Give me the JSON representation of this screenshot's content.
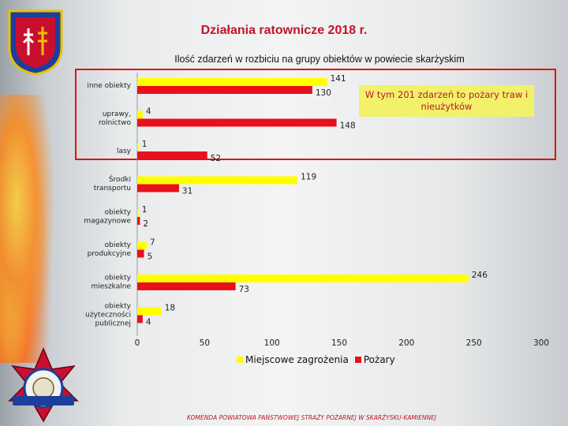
{
  "title": "Działania ratownicze 2018 r.",
  "footer": "KOMENDA POWIATOWA PAŃSTWOWEJ STRAŻY POŻARNEJ W SKARŻYSKU-KAMIENNEJ",
  "note": "W tym 201 zdarzeń to pożary traw i nieużytków",
  "colors": {
    "series1": "#ffff00",
    "series2": "#e8101a",
    "title": "#c0142a"
  },
  "chart_data": {
    "type": "bar",
    "orientation": "horizontal",
    "title": "Ilość zdarzeń w rozbiciu na grupy obiektów w powiecie  skarżyskim",
    "categories": [
      [
        "inne obiekty"
      ],
      [
        "uprawy,",
        "rolnictwo"
      ],
      [
        "lasy"
      ],
      [
        "Środki",
        "transportu"
      ],
      [
        "obiekty",
        "magazynowe"
      ],
      [
        "obiekty",
        "produkcyjne"
      ],
      [
        "obiekty",
        "mieszkalne"
      ],
      [
        "obiekty",
        "użyteczności",
        "publicznej"
      ]
    ],
    "series": [
      {
        "name": "Miejscowe zagrożenia",
        "values": [
          141,
          4,
          1,
          119,
          1,
          7,
          246,
          18
        ]
      },
      {
        "name": "Pożary",
        "values": [
          130,
          148,
          52,
          31,
          2,
          5,
          73,
          4
        ]
      }
    ],
    "xlim": [
      0,
      300
    ],
    "xticks": [
      0,
      50,
      100,
      150,
      200,
      250,
      300
    ],
    "legend_position": "bottom",
    "grid": false
  }
}
